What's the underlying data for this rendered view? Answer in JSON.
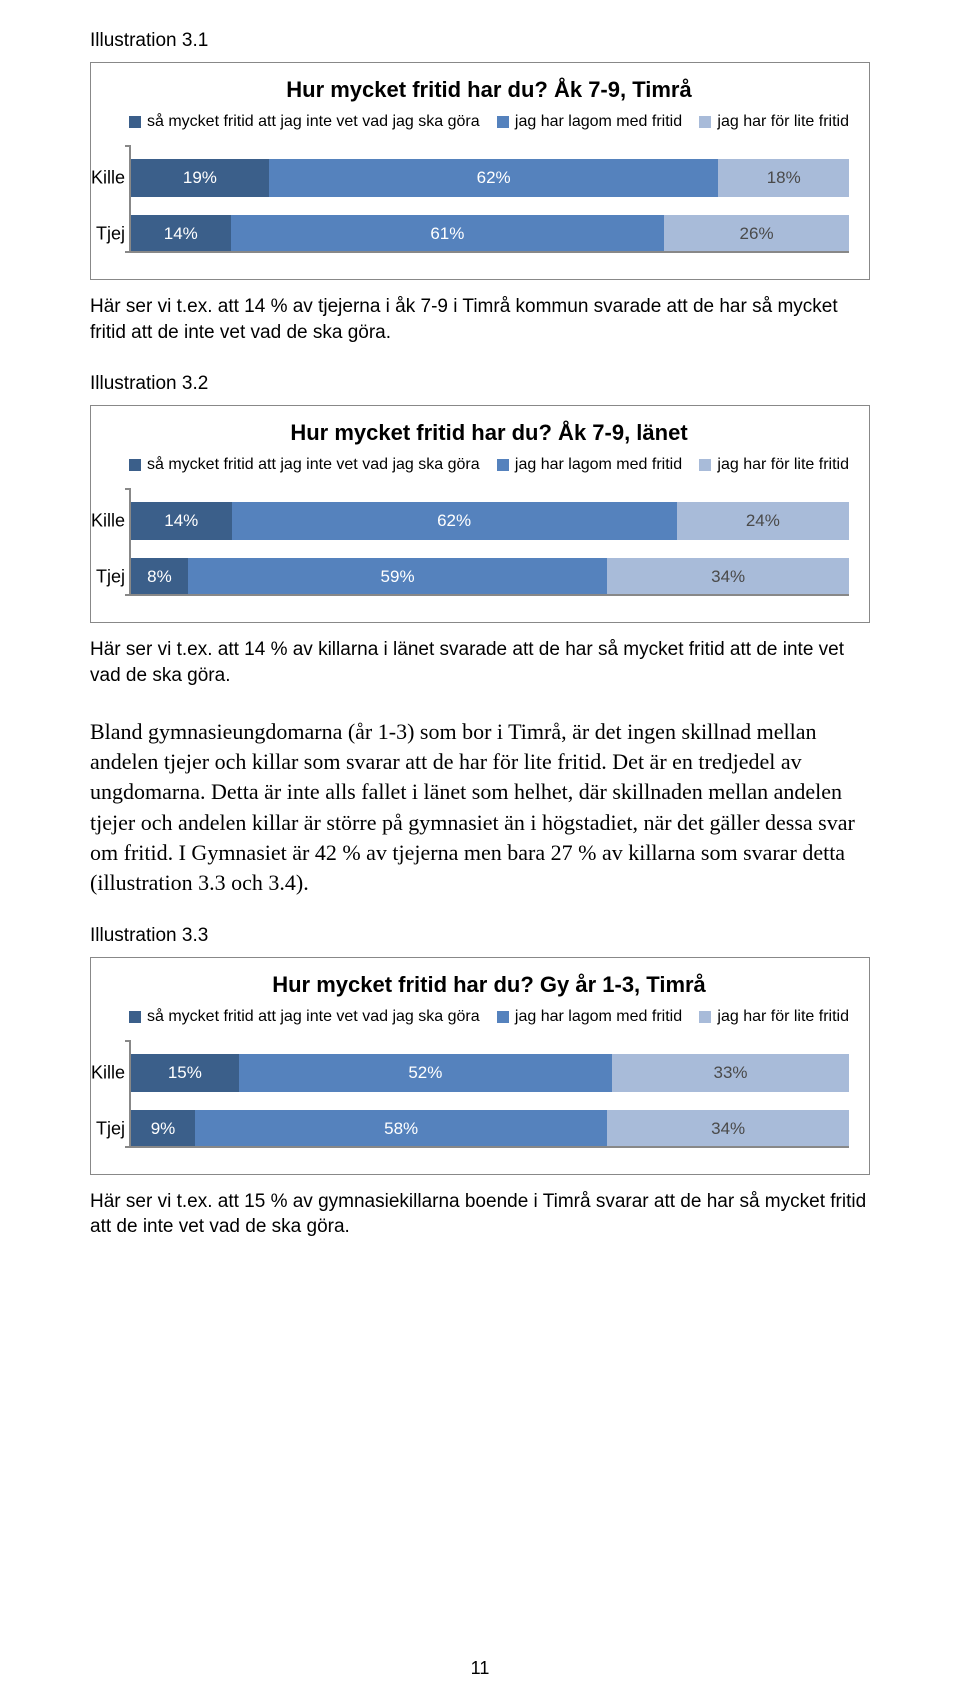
{
  "pagenum": "11",
  "colors": {
    "seg1": "#3b5f8a",
    "seg2": "#5582bd",
    "seg3": "#a8bbd9",
    "baseline": "#888888"
  },
  "charts": [
    {
      "illus_label": "Illustration 3.1",
      "title": "Hur mycket fritid har du? Åk 7-9, Timrå",
      "legend": [
        {
          "label": "så mycket fritid att jag inte vet vad jag ska göra",
          "color": "#3b5f8a"
        },
        {
          "label": "jag har lagom med fritid",
          "color": "#5582bd"
        },
        {
          "label": "jag har för lite fritid",
          "color": "#a8bbd9"
        }
      ],
      "rows": [
        {
          "label": "Kille",
          "segments": [
            {
              "pct": 19,
              "text": "19%",
              "color": "#3b5f8a",
              "text_color": "#ffffff"
            },
            {
              "pct": 62,
              "text": "62%",
              "color": "#5582bd",
              "text_color": "#ffffff"
            },
            {
              "pct": 18,
              "text": "18%",
              "color": "#a8bbd9",
              "text_color": "#4a4a4a"
            }
          ]
        },
        {
          "label": "Tjej",
          "segments": [
            {
              "pct": 14,
              "text": "14%",
              "color": "#3b5f8a",
              "text_color": "#ffffff"
            },
            {
              "pct": 61,
              "text": "61%",
              "color": "#5582bd",
              "text_color": "#ffffff"
            },
            {
              "pct": 26,
              "text": "26%",
              "color": "#a8bbd9",
              "text_color": "#4a4a4a"
            }
          ]
        }
      ],
      "caption": "Här ser vi t.ex. att 14 % av tjejerna i åk 7-9 i Timrå kommun svarade att de har så mycket fritid att de inte vet vad de ska göra."
    },
    {
      "illus_label": "Illustration 3.2",
      "title": "Hur mycket fritid har du? Åk 7-9, länet",
      "legend": [
        {
          "label": "så mycket fritid att jag inte vet vad jag ska göra",
          "color": "#3b5f8a"
        },
        {
          "label": "jag har lagom med fritid",
          "color": "#5582bd"
        },
        {
          "label": "jag har för lite fritid",
          "color": "#a8bbd9"
        }
      ],
      "rows": [
        {
          "label": "Kille",
          "segments": [
            {
              "pct": 14,
              "text": "14%",
              "color": "#3b5f8a",
              "text_color": "#ffffff"
            },
            {
              "pct": 62,
              "text": "62%",
              "color": "#5582bd",
              "text_color": "#ffffff"
            },
            {
              "pct": 24,
              "text": "24%",
              "color": "#a8bbd9",
              "text_color": "#4a4a4a"
            }
          ]
        },
        {
          "label": "Tjej",
          "segments": [
            {
              "pct": 8,
              "text": "8%",
              "color": "#3b5f8a",
              "text_color": "#ffffff"
            },
            {
              "pct": 59,
              "text": "59%",
              "color": "#5582bd",
              "text_color": "#ffffff"
            },
            {
              "pct": 34,
              "text": "34%",
              "color": "#a8bbd9",
              "text_color": "#4a4a4a"
            }
          ]
        }
      ],
      "caption": "Här ser vi t.ex. att 14 % av killarna i länet svarade att de har så mycket fritid att de inte vet vad de ska göra."
    },
    {
      "illus_label": "Illustration 3.3",
      "title": "Hur mycket fritid har du? Gy år 1-3, Timrå",
      "legend": [
        {
          "label": "så mycket fritid att jag inte vet vad jag ska göra",
          "color": "#3b5f8a"
        },
        {
          "label": "jag har lagom med fritid",
          "color": "#5582bd"
        },
        {
          "label": "jag har för lite fritid",
          "color": "#a8bbd9"
        }
      ],
      "rows": [
        {
          "label": "Kille",
          "segments": [
            {
              "pct": 15,
              "text": "15%",
              "color": "#3b5f8a",
              "text_color": "#ffffff"
            },
            {
              "pct": 52,
              "text": "52%",
              "color": "#5582bd",
              "text_color": "#ffffff"
            },
            {
              "pct": 33,
              "text": "33%",
              "color": "#a8bbd9",
              "text_color": "#4a4a4a"
            }
          ]
        },
        {
          "label": "Tjej",
          "segments": [
            {
              "pct": 9,
              "text": "9%",
              "color": "#3b5f8a",
              "text_color": "#ffffff"
            },
            {
              "pct": 58,
              "text": "58%",
              "color": "#5582bd",
              "text_color": "#ffffff"
            },
            {
              "pct": 34,
              "text": "34%",
              "color": "#a8bbd9",
              "text_color": "#4a4a4a"
            }
          ]
        }
      ],
      "caption": "Här ser vi t.ex. att 15 % av gymnasiekillarna boende i Timrå svarar att de har så mycket fritid att de inte vet vad de ska göra."
    }
  ],
  "body_paragraph": "Bland gymnasieungdomarna (år 1-3) som bor i Timrå, är det ingen skillnad mellan andelen tjejer och killar som svarar att de har för lite fritid. Det är en tredjedel av ungdomarna. Detta är inte alls fallet i länet som helhet, där skillnaden mellan andelen tjejer och andelen killar är större på gymnasiet än i högstadiet, när det gäller dessa svar om fritid. I Gymnasiet är 42 % av tjejerna men bara 27 % av killarna som svarar detta (illustration 3.3 och 3.4)."
}
